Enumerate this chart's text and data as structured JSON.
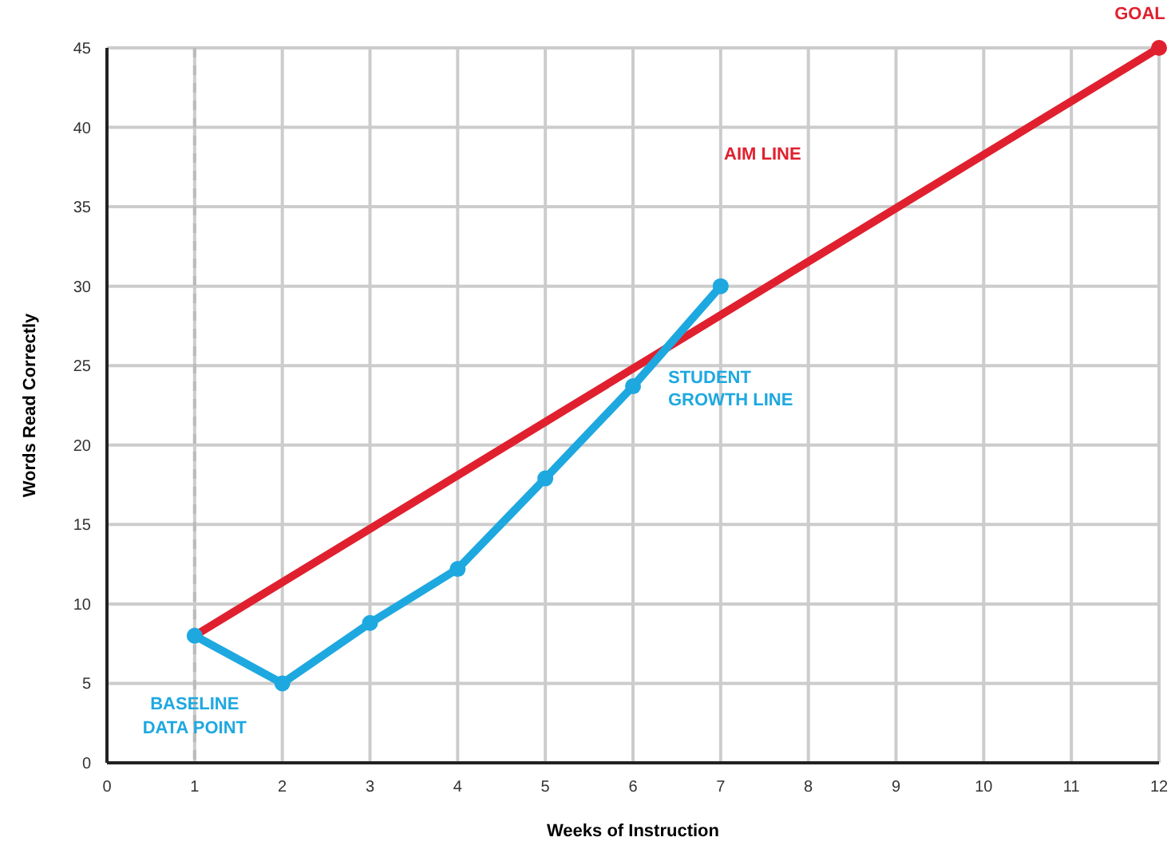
{
  "chart_data": {
    "type": "line",
    "xlabel": "Weeks of Instruction",
    "ylabel": "Words Read Correctly",
    "xlim": [
      0,
      12
    ],
    "xticks": [
      0,
      1,
      2,
      3,
      4,
      5,
      6,
      7,
      8,
      9,
      10,
      11,
      12
    ],
    "ylim": [
      0,
      45
    ],
    "yticks": [
      0,
      5,
      10,
      15,
      20,
      25,
      30,
      35,
      40,
      45
    ],
    "grid": true,
    "series": [
      {
        "name": "AIM LINE",
        "color": "#e0202e",
        "x": [
          1,
          12
        ],
        "values": [
          8,
          45
        ],
        "marker": "none"
      },
      {
        "type": "scatter",
        "color": "#e0202e",
        "x": [
          12
        ],
        "values": [
          45
        ],
        "marker": "circle"
      },
      {
        "name": "STUDENT GROWTH LINE",
        "color": "#1ea8e0",
        "x": [
          1,
          2,
          3,
          4,
          5,
          6,
          7
        ],
        "values": [
          8,
          5,
          8.8,
          12.2,
          17.9,
          23.7,
          30
        ],
        "marker": "circle"
      }
    ],
    "ref_lines": [
      {
        "axis": "x",
        "value": 1,
        "color": "#bbbbbb",
        "line_style": "dashed"
      }
    ],
    "annotations": [
      {
        "text": "GOAL",
        "x": 12,
        "y": 45
      },
      "BASELINE DATA POINT"
    ]
  }
}
